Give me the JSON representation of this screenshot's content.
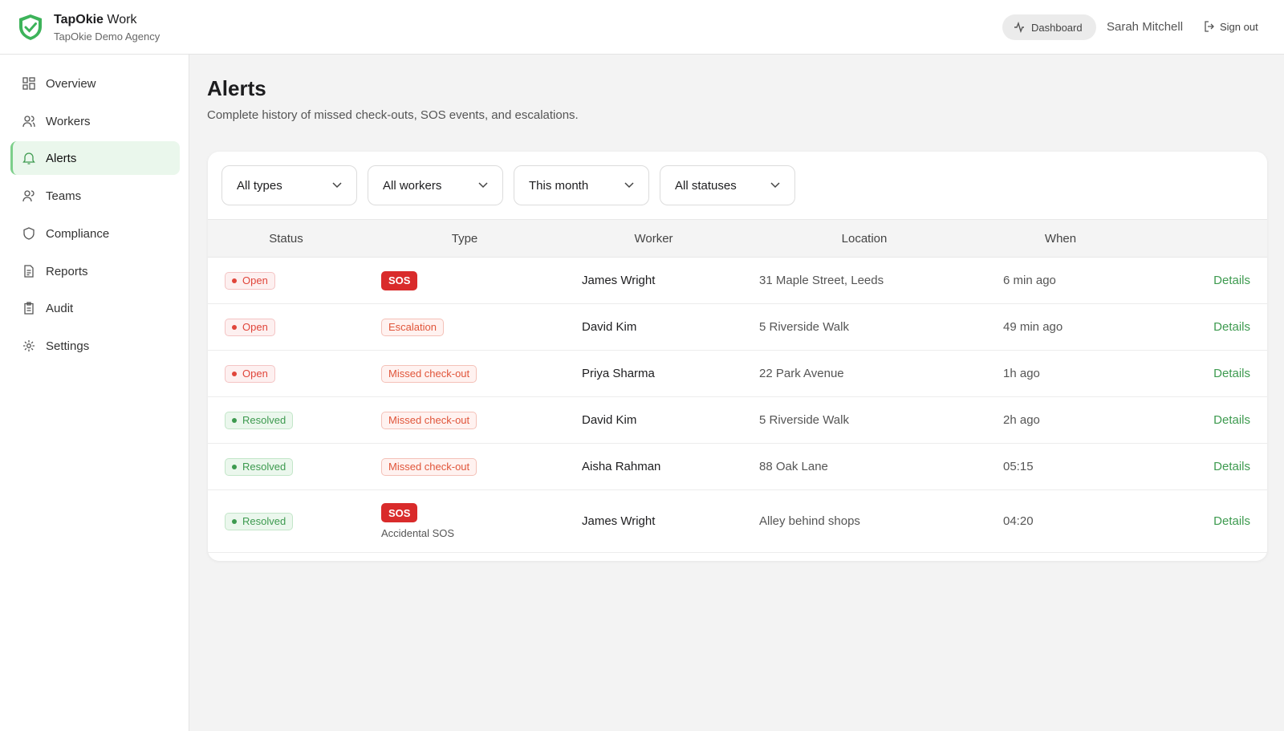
{
  "header": {
    "brand": "TapOkie",
    "product": "Work",
    "agency": "TapOkie Demo Agency",
    "dashboard": "Dashboard",
    "user": "Sarah Mitchell",
    "sign_out": "Sign out"
  },
  "nav": [
    "Overview",
    "Workers",
    "Alerts",
    "Teams",
    "Compliance",
    "Reports",
    "Audit",
    "Settings"
  ],
  "page": {
    "title": "Alerts",
    "subtitle": "Complete history of missed check-outs, SOS events, and escalations."
  },
  "filters": [
    "All types",
    "All workers",
    "This month",
    "All statuses"
  ],
  "table": {
    "columns": [
      "Status",
      "Type",
      "Worker",
      "Location",
      "When"
    ],
    "rows": [
      {
        "status": "Open",
        "type": "SOS",
        "worker": "James Wright",
        "location": "31 Maple Street, Leeds",
        "when": "6 min ago",
        "action": "Details"
      },
      {
        "status": "Open",
        "type": "Escalation",
        "worker": "David Kim",
        "location": "5 Riverside Walk",
        "when": "49 min ago",
        "action": "Details"
      },
      {
        "status": "Open",
        "type": "Missed check-out",
        "worker": "Priya Sharma",
        "location": "22 Park Avenue",
        "when": "1h ago",
        "action": "Details"
      },
      {
        "status": "Resolved",
        "type": "Missed check-out",
        "worker": "David Kim",
        "location": "5 Riverside Walk",
        "when": "2h ago",
        "action": "Details"
      },
      {
        "status": "Resolved",
        "type": "Missed check-out",
        "worker": "Aisha Rahman",
        "location": "88 Oak Lane",
        "when": "05:15",
        "action": "Details"
      },
      {
        "status": "Resolved",
        "type": "SOS",
        "type_note": "Accidental SOS",
        "worker": "James Wright",
        "location": "Alley behind shops",
        "when": "04:20",
        "action": "Details"
      }
    ]
  }
}
